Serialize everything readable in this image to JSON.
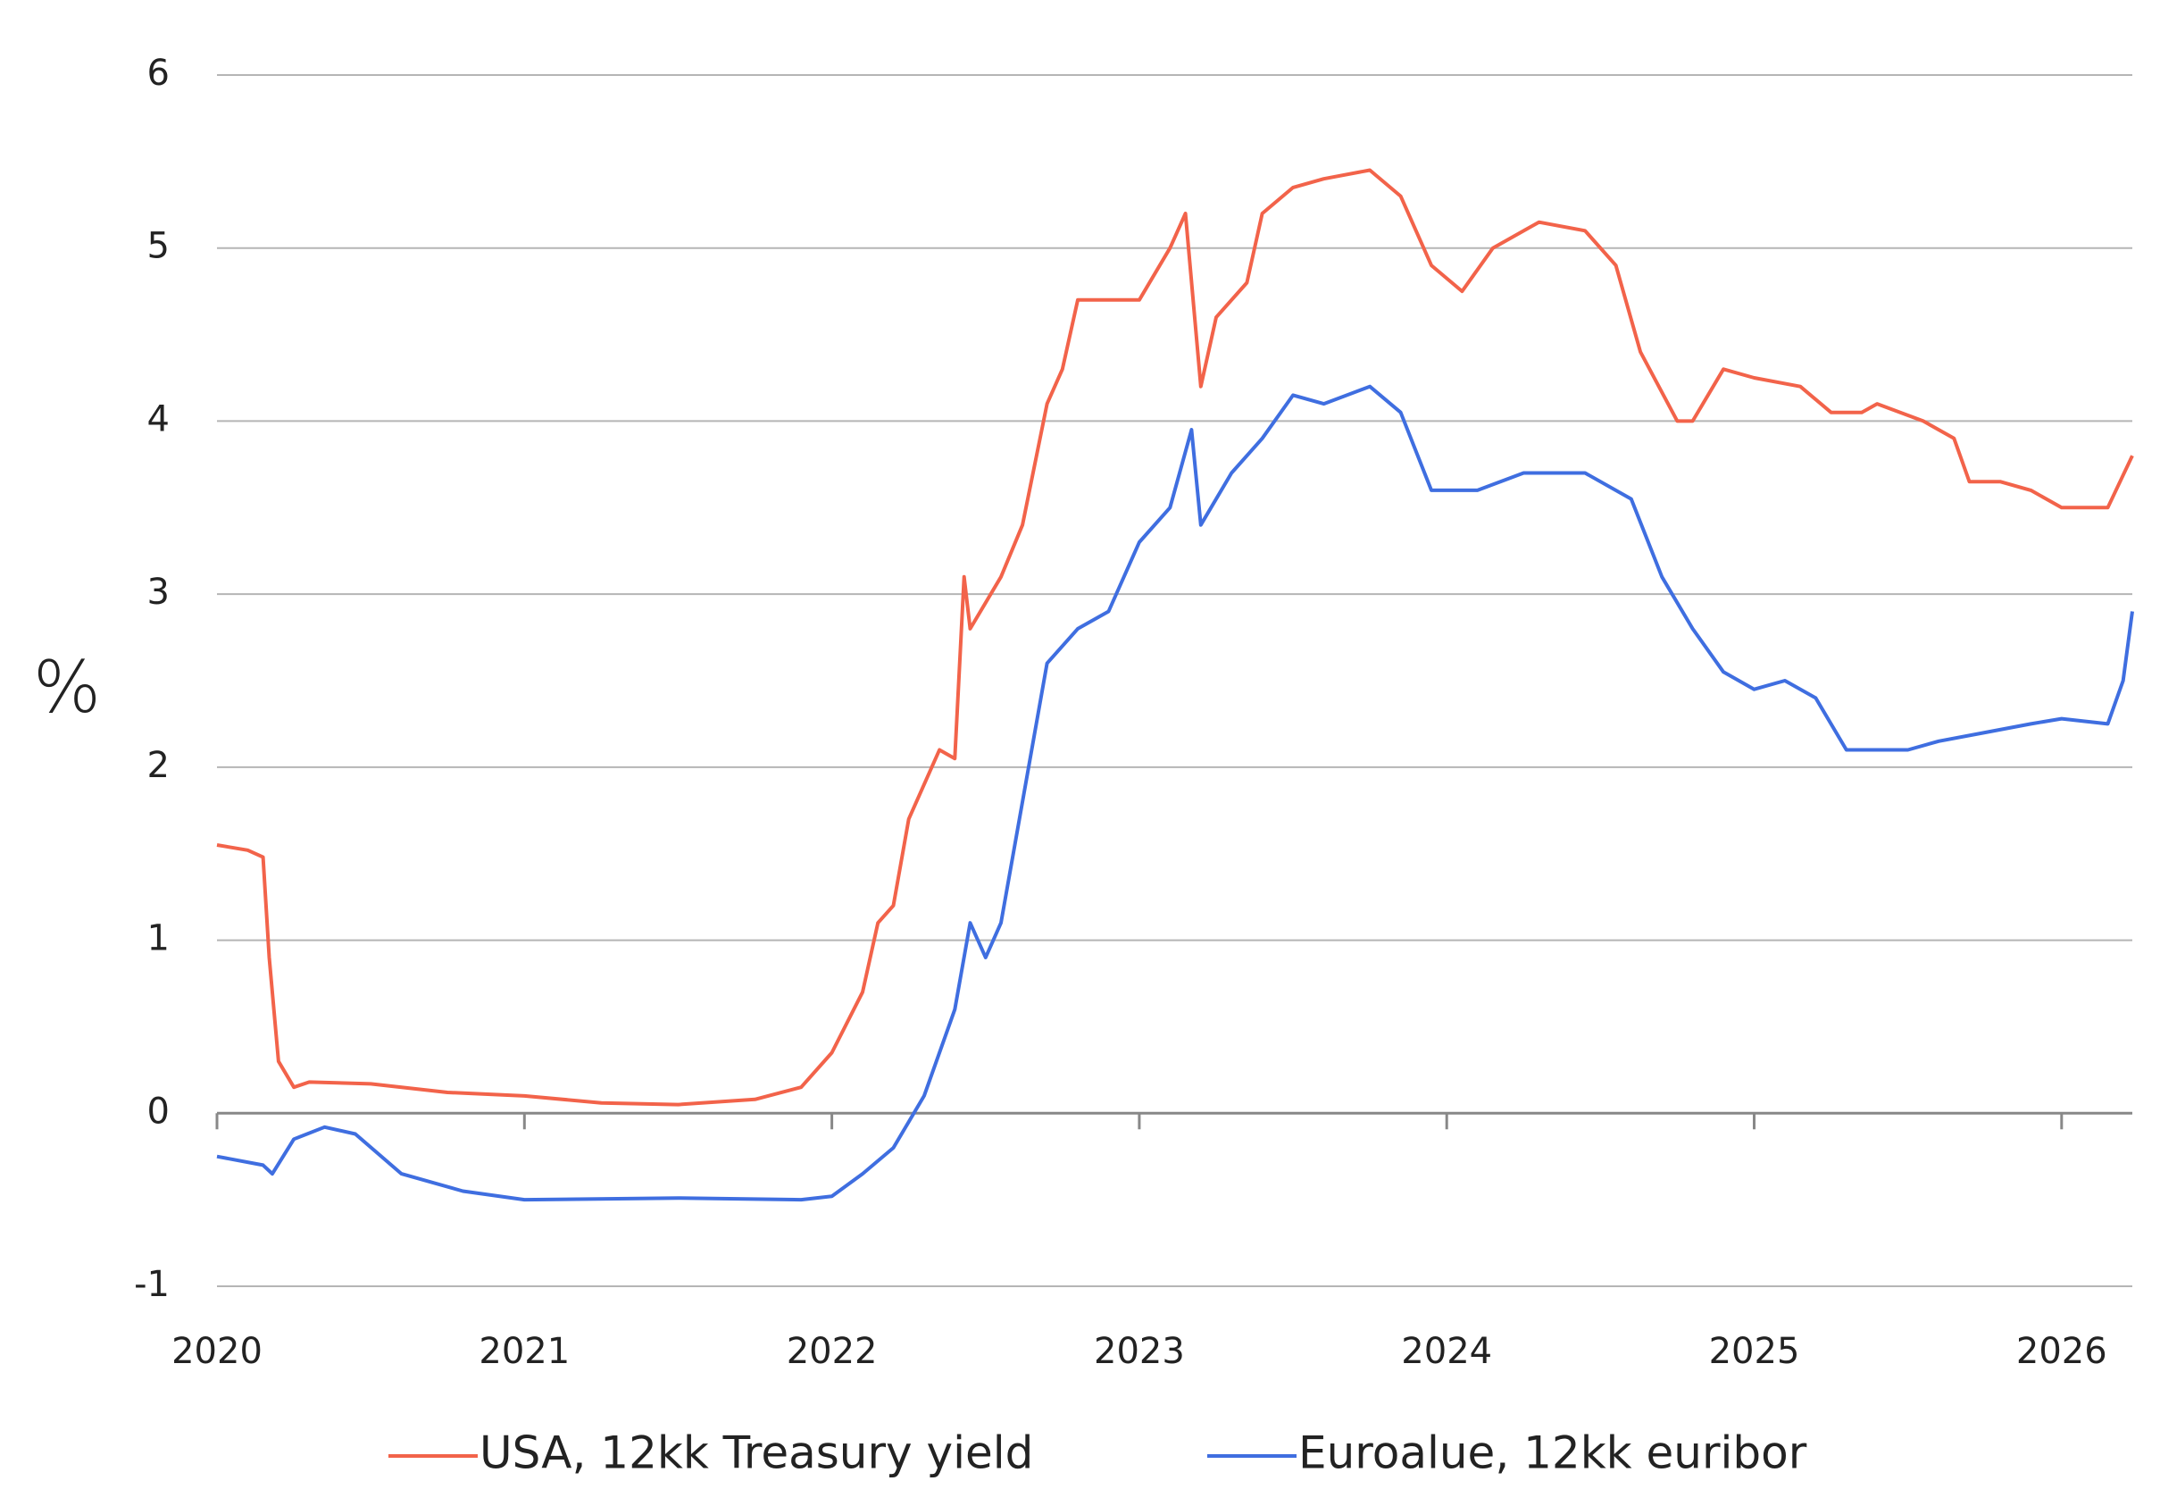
{
  "chart_data": {
    "type": "line",
    "y_label": "%",
    "xlim": [
      2020,
      2026.23
    ],
    "xticks": [
      2020,
      2021,
      2022,
      2023,
      2024,
      2025,
      2026
    ],
    "ylim": [
      -1,
      6
    ],
    "yticks": [
      -1,
      0,
      1,
      2,
      3,
      4,
      5,
      6
    ],
    "grid": true,
    "legend": "bottom",
    "series": [
      {
        "name": "USA, 12kk Treasury yield",
        "color": "#f2634a",
        "x": [
          2020.0,
          2020.1,
          2020.15,
          2020.17,
          2020.2,
          2020.25,
          2020.3,
          2020.5,
          2020.75,
          2021.0,
          2021.25,
          2021.5,
          2021.75,
          2021.9,
          2022.0,
          2022.1,
          2022.15,
          2022.2,
          2022.25,
          2022.35,
          2022.4,
          2022.43,
          2022.45,
          2022.55,
          2022.62,
          2022.7,
          2022.75,
          2022.8,
          2022.9,
          2023.0,
          2023.1,
          2023.15,
          2023.2,
          2023.25,
          2023.35,
          2023.4,
          2023.5,
          2023.6,
          2023.75,
          2023.85,
          2023.95,
          2024.05,
          2024.15,
          2024.3,
          2024.45,
          2024.55,
          2024.63,
          2024.75,
          2024.8,
          2024.9,
          2025.0,
          2025.15,
          2025.25,
          2025.35,
          2025.4,
          2025.55,
          2025.65,
          2025.7,
          2025.8,
          2025.9,
          2026.0,
          2026.15,
          2026.23
        ],
        "values": [
          1.55,
          1.52,
          1.48,
          0.9,
          0.3,
          0.15,
          0.18,
          0.17,
          0.12,
          0.1,
          0.06,
          0.05,
          0.08,
          0.15,
          0.35,
          0.7,
          1.1,
          1.2,
          1.7,
          2.1,
          2.05,
          3.1,
          2.8,
          3.1,
          3.4,
          4.1,
          4.3,
          4.7,
          4.7,
          4.7,
          5.0,
          5.2,
          4.2,
          4.6,
          4.8,
          5.2,
          5.35,
          5.4,
          5.45,
          5.3,
          4.9,
          4.75,
          5.0,
          5.15,
          5.1,
          4.9,
          4.4,
          4.0,
          4.0,
          4.3,
          4.25,
          4.2,
          4.05,
          4.05,
          4.1,
          4.0,
          3.9,
          3.65,
          3.65,
          3.6,
          3.5,
          3.5,
          3.8
        ]
      },
      {
        "name": "Euroalue, 12kk euribor",
        "color": "#3f6ee0",
        "x": [
          2020.0,
          2020.15,
          2020.18,
          2020.25,
          2020.35,
          2020.45,
          2020.6,
          2020.8,
          2021.0,
          2021.5,
          2021.9,
          2022.0,
          2022.1,
          2022.2,
          2022.3,
          2022.4,
          2022.45,
          2022.5,
          2022.55,
          2022.65,
          2022.7,
          2022.8,
          2022.9,
          2023.0,
          2023.1,
          2023.17,
          2023.2,
          2023.3,
          2023.4,
          2023.5,
          2023.6,
          2023.75,
          2023.85,
          2023.95,
          2024.1,
          2024.25,
          2024.45,
          2024.6,
          2024.7,
          2024.8,
          2024.9,
          2025.0,
          2025.1,
          2025.2,
          2025.3,
          2025.4,
          2025.5,
          2025.6,
          2025.75,
          2025.9,
          2026.0,
          2026.15,
          2026.2,
          2026.23
        ],
        "values": [
          -0.25,
          -0.3,
          -0.35,
          -0.15,
          -0.08,
          -0.12,
          -0.35,
          -0.45,
          -0.5,
          -0.49,
          -0.5,
          -0.48,
          -0.35,
          -0.2,
          0.1,
          0.6,
          1.1,
          0.9,
          1.1,
          2.1,
          2.6,
          2.8,
          2.9,
          3.3,
          3.5,
          3.95,
          3.4,
          3.7,
          3.9,
          4.15,
          4.1,
          4.2,
          4.05,
          3.6,
          3.6,
          3.7,
          3.7,
          3.55,
          3.1,
          2.8,
          2.55,
          2.45,
          2.5,
          2.4,
          2.1,
          2.1,
          2.1,
          2.15,
          2.2,
          2.25,
          2.28,
          2.25,
          2.5,
          2.9
        ]
      }
    ]
  }
}
